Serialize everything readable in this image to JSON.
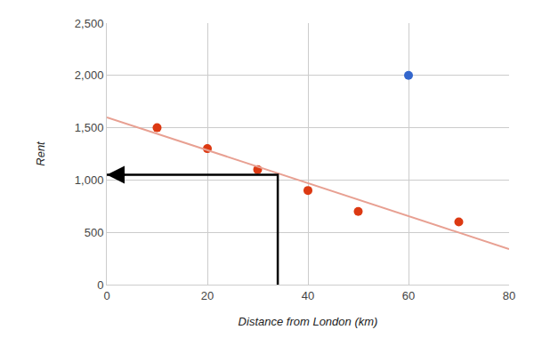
{
  "chart_data": {
    "type": "scatter",
    "x_label": "Distance from London (km)",
    "y_label": "Rent",
    "xlim": [
      0,
      80
    ],
    "xticks": [
      0,
      20,
      40,
      60,
      80
    ],
    "ylim": [
      0,
      2500
    ],
    "yticks": [
      0,
      500,
      {
        "value": 1000,
        "label": "1,000"
      },
      {
        "value": 1500,
        "label": "1,500"
      },
      {
        "value": 2000,
        "label": "2,000"
      },
      {
        "value": 2500,
        "label": "2,500"
      }
    ],
    "grid": true,
    "series": [
      {
        "type": "scatter",
        "color": "#dc3912",
        "marker": "circle",
        "x": [
          10,
          20,
          30,
          40,
          50,
          70
        ],
        "values": [
          1500,
          1300,
          1100,
          900,
          700,
          600
        ]
      },
      {
        "type": "scatter",
        "color": "#3366cc",
        "marker": "circle",
        "x": [
          60
        ],
        "values": [
          2000
        ]
      },
      {
        "type": "line",
        "color": "#e8a092",
        "line_style": "solid",
        "x": [
          0,
          80
        ],
        "values": [
          1600,
          340
        ]
      },
      {
        "type": "line",
        "color": "#000000",
        "line_style": "arrow",
        "x": [
          34,
          34,
          0
        ],
        "values": [
          0,
          1050,
          1050
        ]
      }
    ]
  }
}
